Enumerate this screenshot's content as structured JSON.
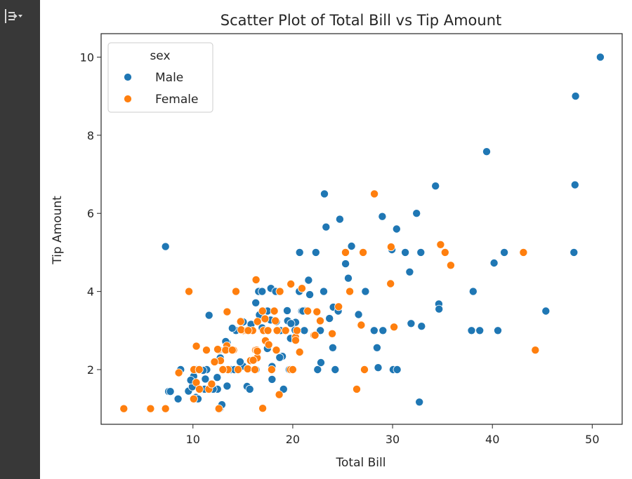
{
  "colors": {
    "male": "#1f77b4",
    "female": "#ff7f0e",
    "sidebar": "#383838",
    "axis": "#262626"
  },
  "sidebar": {
    "toggle_icon": "collapse-output-icon"
  },
  "chart_data": {
    "type": "scatter",
    "title": "Scatter Plot of Total Bill vs Tip Amount",
    "xlabel": "Total Bill",
    "ylabel": "Tip Amount",
    "xlim": [
      0.8,
      53.0
    ],
    "ylim": [
      0.6,
      10.6
    ],
    "xticks": [
      10,
      20,
      30,
      40,
      50
    ],
    "yticks": [
      2,
      4,
      6,
      8,
      10
    ],
    "legend": {
      "title": "sex",
      "placement": "top-left",
      "entries": [
        "Male",
        "Female"
      ]
    },
    "series": [
      {
        "name": "Male",
        "color": "#1f77b4",
        "points": [
          [
            50.81,
            10.0
          ],
          [
            48.33,
            9.0
          ],
          [
            39.42,
            7.58
          ],
          [
            48.27,
            6.73
          ],
          [
            34.3,
            6.7
          ],
          [
            23.17,
            6.5
          ],
          [
            32.4,
            6.0
          ],
          [
            28.97,
            5.92
          ],
          [
            24.71,
            5.85
          ],
          [
            23.33,
            5.65
          ],
          [
            30.4,
            5.6
          ],
          [
            7.25,
            5.15
          ],
          [
            25.89,
            5.16
          ],
          [
            29.93,
            5.07
          ],
          [
            20.69,
            5.0
          ],
          [
            22.31,
            5.0
          ],
          [
            31.27,
            5.0
          ],
          [
            32.83,
            5.0
          ],
          [
            41.19,
            5.0
          ],
          [
            48.17,
            5.0
          ],
          [
            40.17,
            4.73
          ],
          [
            25.29,
            4.71
          ],
          [
            31.71,
            4.5
          ],
          [
            21.58,
            4.29
          ],
          [
            25.56,
            4.34
          ],
          [
            17.81,
            4.08
          ],
          [
            38.07,
            4.0
          ],
          [
            18.29,
            4.0
          ],
          [
            23.1,
            4.0
          ],
          [
            16.58,
            4.0
          ],
          [
            16.93,
            4.0
          ],
          [
            20.65,
            4.0
          ],
          [
            21.7,
            3.92
          ],
          [
            27.28,
            4.0
          ],
          [
            34.63,
            3.68
          ],
          [
            34.65,
            3.55
          ],
          [
            45.35,
            3.5
          ],
          [
            19.44,
            3.51
          ],
          [
            21.2,
            3.51
          ],
          [
            16.29,
            3.71
          ],
          [
            11.61,
            3.39
          ],
          [
            24.06,
            3.6
          ],
          [
            24.55,
            3.5
          ],
          [
            26.59,
            3.41
          ],
          [
            23.68,
            3.31
          ],
          [
            19.49,
            3.25
          ],
          [
            16.93,
            3.07
          ],
          [
            14.31,
            3.0
          ],
          [
            15.36,
            3.0
          ],
          [
            13.94,
            3.06
          ],
          [
            15.69,
            3.06
          ],
          [
            17.31,
            3.0
          ],
          [
            18.24,
            3.25
          ],
          [
            18.35,
            3.23
          ],
          [
            20.08,
            3.15
          ],
          [
            20.29,
            3.21
          ],
          [
            21.16,
            3.0
          ],
          [
            22.76,
            3.0
          ],
          [
            28.15,
            3.0
          ],
          [
            29.03,
            3.0
          ],
          [
            37.91,
            3.0
          ],
          [
            38.73,
            3.0
          ],
          [
            40.55,
            3.0
          ],
          [
            32.9,
            3.11
          ],
          [
            31.85,
            3.18
          ],
          [
            15.04,
            3.22
          ],
          [
            15.82,
            3.16
          ],
          [
            17.47,
            3.5
          ],
          [
            18.78,
            3.0
          ],
          [
            19.82,
            3.18
          ],
          [
            20.23,
            3.01
          ],
          [
            13.42,
            2.69
          ],
          [
            17.78,
            3.27
          ],
          [
            16.45,
            2.47
          ],
          [
            19.77,
            2.8
          ],
          [
            24.01,
            2.56
          ],
          [
            28.44,
            2.56
          ],
          [
            16.31,
            2.0
          ],
          [
            14.48,
            2.0
          ],
          [
            13.03,
            2.0
          ],
          [
            10.07,
            1.83
          ],
          [
            12.46,
            1.5
          ],
          [
            11.38,
            2.0
          ],
          [
            9.55,
            1.45
          ],
          [
            10.29,
            1.29
          ],
          [
            9.94,
            1.56
          ],
          [
            12.43,
            1.8
          ],
          [
            8.77,
            2.0
          ],
          [
            12.74,
            2.3
          ],
          [
            13.37,
            2.0
          ],
          [
            13.81,
            2.0
          ],
          [
            15.42,
            1.57
          ],
          [
            15.69,
            1.5
          ],
          [
            17.92,
            2.08
          ],
          [
            17.92,
            1.75
          ],
          [
            18.96,
            2.34
          ],
          [
            19.65,
            2.0
          ],
          [
            22.49,
            2.0
          ],
          [
            22.82,
            2.18
          ],
          [
            24.25,
            2.0
          ],
          [
            28.55,
            2.05
          ],
          [
            30.06,
            2.0
          ],
          [
            30.46,
            2.0
          ],
          [
            7.56,
            1.44
          ],
          [
            10.33,
            2.0
          ],
          [
            10.51,
            1.25
          ],
          [
            12.69,
            1.0
          ],
          [
            32.68,
            1.17
          ],
          [
            8.51,
            1.25
          ],
          [
            11.02,
            1.98
          ],
          [
            12.03,
            1.5
          ],
          [
            12.9,
            1.1
          ],
          [
            13.28,
            2.72
          ],
          [
            14.15,
            2.0
          ],
          [
            15.01,
            2.09
          ],
          [
            17.46,
            2.54
          ],
          [
            18.69,
            2.31
          ],
          [
            19.08,
            1.5
          ],
          [
            20.9,
            3.5
          ],
          [
            21.01,
            3.5
          ],
          [
            12.66,
            2.5
          ],
          [
            11.24,
            1.76
          ],
          [
            13.0,
            2.0
          ],
          [
            7.74,
            1.44
          ],
          [
            9.78,
            1.73
          ],
          [
            13.42,
            1.58
          ],
          [
            14.73,
            2.2
          ],
          [
            16.66,
            3.4
          ],
          [
            11.17,
            1.5
          ],
          [
            12.16,
            2.2
          ]
        ]
      },
      {
        "name": "Female",
        "color": "#ff7f0e",
        "points": [
          [
            3.07,
            1.0
          ],
          [
            5.75,
            1.0
          ],
          [
            7.25,
            1.0
          ],
          [
            16.99,
            1.01
          ],
          [
            8.58,
            1.92
          ],
          [
            9.6,
            4.0
          ],
          [
            10.07,
            1.25
          ],
          [
            10.09,
            2.0
          ],
          [
            10.33,
            1.67
          ],
          [
            10.34,
            2.6
          ],
          [
            11.35,
            2.5
          ],
          [
            11.59,
            1.5
          ],
          [
            12.54,
            2.5
          ],
          [
            12.76,
            2.23
          ],
          [
            13.13,
            2.0
          ],
          [
            13.39,
            2.61
          ],
          [
            13.51,
            2.0
          ],
          [
            13.42,
            3.48
          ],
          [
            14.07,
            2.5
          ],
          [
            14.52,
            2.0
          ],
          [
            14.78,
            3.23
          ],
          [
            15.06,
            3.0
          ],
          [
            15.38,
            3.0
          ],
          [
            15.48,
            2.02
          ],
          [
            15.77,
            2.23
          ],
          [
            16.21,
            2.0
          ],
          [
            16.27,
            2.5
          ],
          [
            16.43,
            2.3
          ],
          [
            16.4,
            2.5
          ],
          [
            16.97,
            3.5
          ],
          [
            16.47,
            3.23
          ],
          [
            17.07,
            3.0
          ],
          [
            17.26,
            2.74
          ],
          [
            17.51,
            3.0
          ],
          [
            17.59,
            2.64
          ],
          [
            17.89,
            2.0
          ],
          [
            18.15,
            3.5
          ],
          [
            18.26,
            3.25
          ],
          [
            18.43,
            3.0
          ],
          [
            18.64,
            1.36
          ],
          [
            19.81,
            4.19
          ],
          [
            20.27,
            2.83
          ],
          [
            20.29,
            2.75
          ],
          [
            20.92,
            4.08
          ],
          [
            22.42,
            3.48
          ],
          [
            22.75,
            3.25
          ],
          [
            25.71,
            4.0
          ],
          [
            26.41,
            1.5
          ],
          [
            27.05,
            5.0
          ],
          [
            28.17,
            6.5
          ],
          [
            29.85,
            5.14
          ],
          [
            30.14,
            3.09
          ],
          [
            35.26,
            5.0
          ],
          [
            35.83,
            4.67
          ],
          [
            44.3,
            2.5
          ],
          [
            43.11,
            5.0
          ],
          [
            34.81,
            5.2
          ],
          [
            29.8,
            4.2
          ],
          [
            27.18,
            2.0
          ],
          [
            26.86,
            3.14
          ],
          [
            25.28,
            5.0
          ],
          [
            24.59,
            3.61
          ],
          [
            23.95,
            2.92
          ],
          [
            22.12,
            2.88
          ],
          [
            20.69,
            2.45
          ],
          [
            19.77,
            2.0
          ],
          [
            16.45,
            2.47
          ],
          [
            15.98,
            3.0
          ],
          [
            14.83,
            3.02
          ],
          [
            13.27,
            2.5
          ],
          [
            12.48,
            2.52
          ],
          [
            11.87,
            1.63
          ],
          [
            10.65,
            1.5
          ],
          [
            16.32,
            4.3
          ],
          [
            14.31,
            4.0
          ],
          [
            18.35,
            2.5
          ],
          [
            20.0,
            2.0
          ],
          [
            12.6,
            1.0
          ],
          [
            13.0,
            2.0
          ],
          [
            10.63,
            2.0
          ],
          [
            15.53,
            3.0
          ],
          [
            16.04,
            2.24
          ],
          [
            18.71,
            4.0
          ],
          [
            22.23,
            2.88
          ],
          [
            17.22,
            3.3
          ],
          [
            19.28,
            3.0
          ],
          [
            20.42,
            3.0
          ],
          [
            21.5,
            3.5
          ],
          [
            12.16,
            2.2
          ],
          [
            13.94,
            2.5
          ]
        ]
      }
    ]
  }
}
